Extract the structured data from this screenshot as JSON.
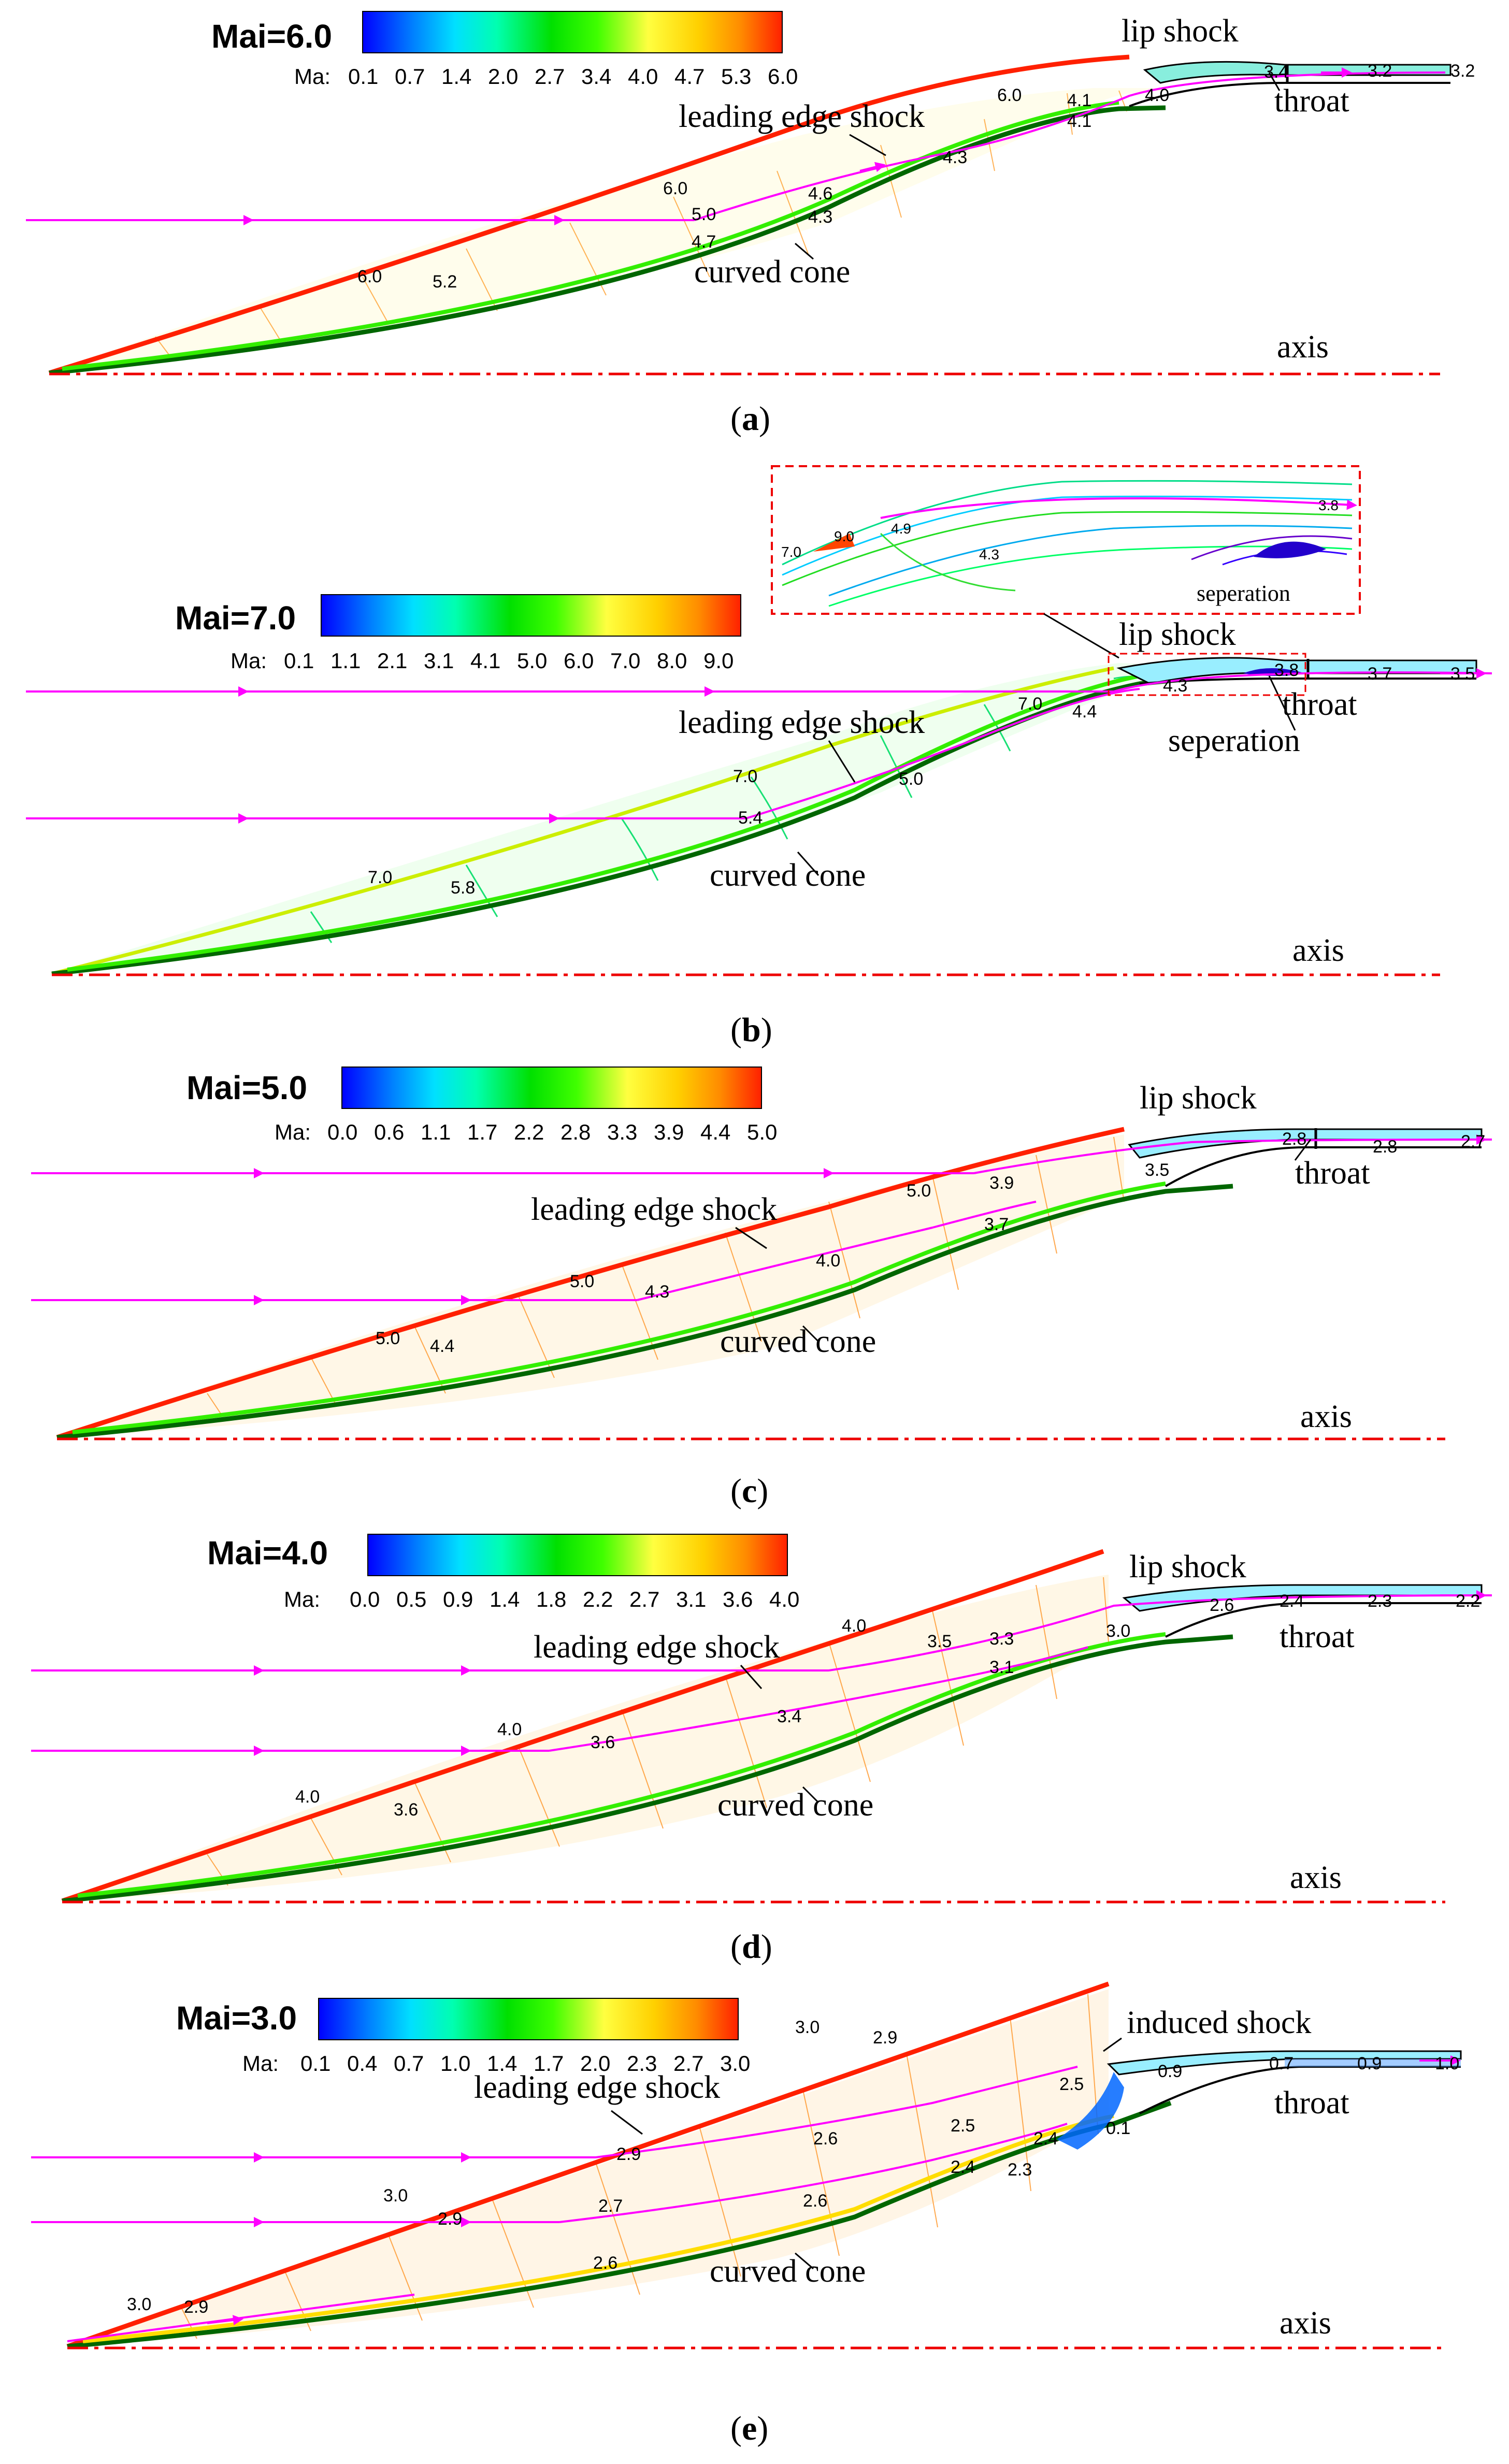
{
  "palette": [
    "#0000ff",
    "#0066ff",
    "#00ccff",
    "#00ffcc",
    "#00ff66",
    "#33ff00",
    "#99ff00",
    "#ffff00",
    "#ffcc00",
    "#ff8800",
    "#ff3300"
  ],
  "panels": [
    {
      "id": "a",
      "caption_open": "(",
      "caption_letter": "a",
      "caption_close": ")",
      "mai": "Mai=6.0",
      "ma_label": "Ma:",
      "ticks": [
        "0.1",
        "0.7",
        "1.4",
        "2.0",
        "2.7",
        "3.4",
        "4.0",
        "4.7",
        "5.3",
        "6.0"
      ],
      "annotations": {
        "lip_shock": "lip shock",
        "throat": "throat",
        "leading": "leading edge shock",
        "cone": "curved cone",
        "axis": "axis"
      },
      "values": [
        "6.0",
        "5.2",
        "6.0",
        "5.0",
        "4.7",
        "4.6",
        "4.3",
        "4.3",
        "6.0",
        "4.1",
        "4.1",
        "4.0",
        "3.4",
        "3.2",
        "3.2"
      ]
    },
    {
      "id": "b",
      "caption_open": "(",
      "caption_letter": "b",
      "caption_close": ")",
      "mai": "Mai=7.0",
      "ma_label": "Ma:",
      "ticks": [
        "0.1",
        "1.1",
        "2.1",
        "3.1",
        "4.1",
        "5.0",
        "6.0",
        "7.0",
        "8.0",
        "9.0"
      ],
      "annotations": {
        "lip_shock": "lip shock",
        "throat": "throat",
        "leading": "leading edge shock",
        "cone": "curved cone",
        "axis": "axis",
        "separation": "seperation"
      },
      "values": [
        "7.0",
        "5.8",
        "7.0",
        "5.4",
        "5.0",
        "7.0",
        "4.4",
        "4.3",
        "3.8",
        "3.7",
        "3.5"
      ],
      "inset": {
        "values": [
          "7.0",
          "9.0",
          "4.9",
          "4.3",
          "3.8"
        ],
        "label": "seperation"
      }
    },
    {
      "id": "c",
      "caption_open": "(",
      "caption_letter": "c",
      "caption_close": ")",
      "mai": "Mai=5.0",
      "ma_label": "Ma:",
      "ticks": [
        "0.0",
        "0.6",
        "1.1",
        "1.7",
        "2.2",
        "2.8",
        "3.3",
        "3.9",
        "4.4",
        "5.0"
      ],
      "annotations": {
        "lip_shock": "lip shock",
        "throat": "throat",
        "leading": "leading edge shock",
        "cone": "curved cone",
        "axis": "axis"
      },
      "values": [
        "5.0",
        "4.4",
        "5.0",
        "4.3",
        "4.0",
        "5.0",
        "3.9",
        "3.7",
        "3.5",
        "2.8",
        "2.8",
        "2.7"
      ]
    },
    {
      "id": "d",
      "caption_open": "(",
      "caption_letter": "d",
      "caption_close": ")",
      "mai": "Mai=4.0",
      "ma_label": "Ma:",
      "ticks": [
        "0.0",
        "0.5",
        "0.9",
        "1.4",
        "1.8",
        "2.2",
        "2.7",
        "3.1",
        "3.6",
        "4.0"
      ],
      "annotations": {
        "lip_shock": "lip shock",
        "throat": "throat",
        "leading": "leading edge shock",
        "cone": "curved cone",
        "axis": "axis"
      },
      "values": [
        "4.0",
        "3.6",
        "4.0",
        "3.6",
        "3.4",
        "4.0",
        "3.5",
        "3.3",
        "3.1",
        "3.0",
        "2.6",
        "2.4",
        "2.3",
        "2.2"
      ]
    },
    {
      "id": "e",
      "caption_open": "(",
      "caption_letter": "e",
      "caption_close": ")",
      "mai": "Mai=3.0",
      "ma_label": "Ma:",
      "ticks": [
        "0.1",
        "0.4",
        "0.7",
        "1.0",
        "1.4",
        "1.7",
        "2.0",
        "2.3",
        "2.7",
        "3.0"
      ],
      "annotations": {
        "induced": "induced shock",
        "throat": "throat",
        "leading": "leading edge shock",
        "cone": "curved cone",
        "axis": "axis"
      },
      "values": [
        "3.0",
        "2.9",
        "3.0",
        "2.9",
        "2.6",
        "3.0",
        "2.9",
        "2.9",
        "2.7",
        "2.6",
        "2.6",
        "2.5",
        "2.4",
        "2.3",
        "2.4",
        "2.5",
        "0.1",
        "0.9",
        "0.7",
        "0.9",
        "1.0"
      ]
    }
  ]
}
